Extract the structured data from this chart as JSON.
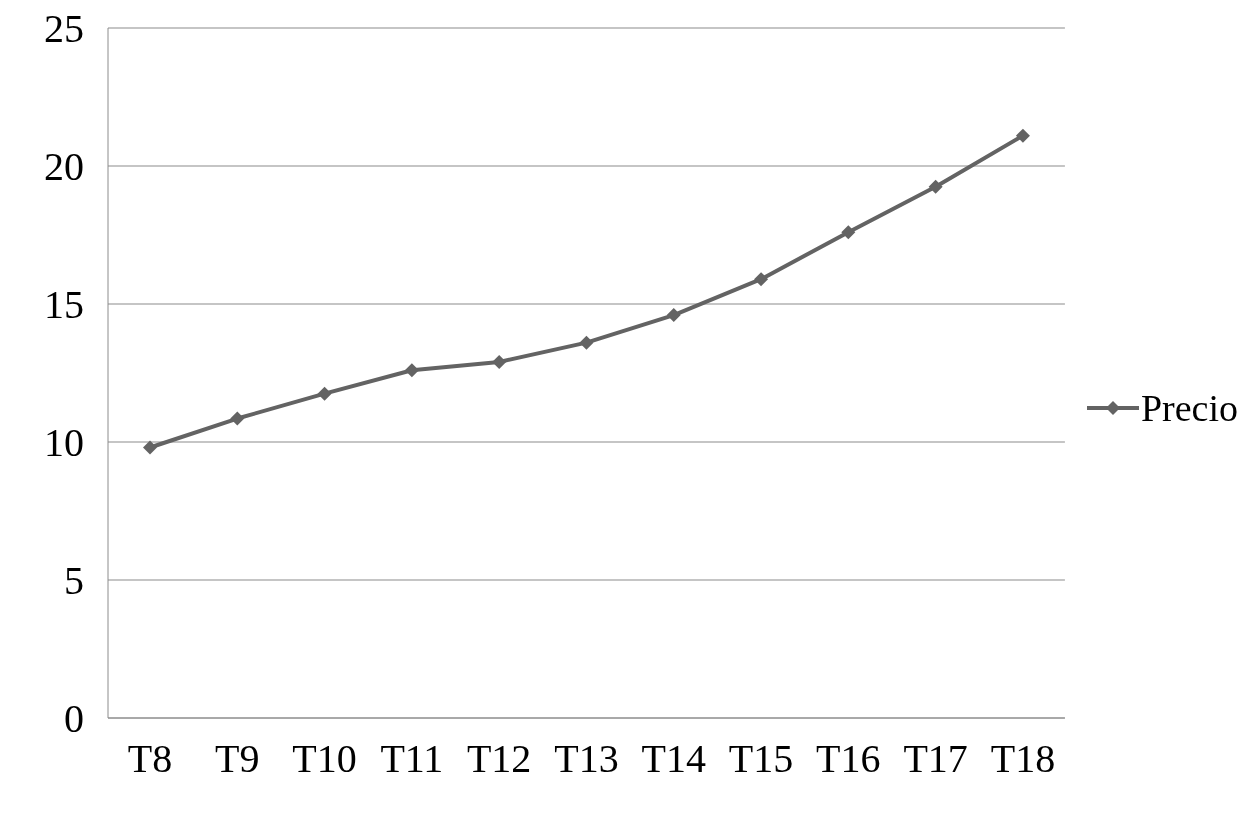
{
  "chart_data": {
    "type": "line",
    "categories": [
      "T8",
      "T9",
      "T10",
      "T11",
      "T12",
      "T13",
      "T14",
      "T15",
      "T16",
      "T17",
      "T18"
    ],
    "series": [
      {
        "name": "Precio",
        "color": "#636363",
        "values": [
          9.8,
          10.85,
          11.75,
          12.6,
          12.9,
          13.6,
          14.6,
          15.9,
          17.6,
          19.25,
          21.1
        ]
      }
    ],
    "ylim": [
      0,
      25
    ],
    "yticks": [
      0,
      5,
      10,
      15,
      20,
      25
    ],
    "grid": "y",
    "legend": "right",
    "marker": "diamond",
    "line_style": "solid"
  }
}
